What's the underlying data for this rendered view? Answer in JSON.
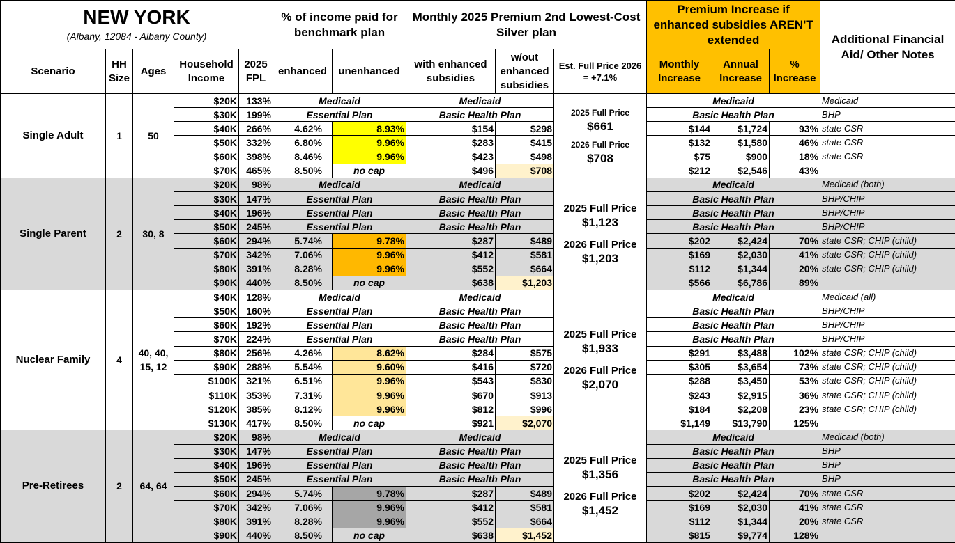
{
  "header": {
    "title": "NEW YORK",
    "subtitle": "(Albany, 12084 - Albany County)",
    "rate_group": "% of income paid for benchmark plan",
    "premium_group": "Monthly 2025 Premium 2nd Lowest-Cost Silver plan",
    "increase_group": "Premium Increase if enhanced subsidies AREN'T extended",
    "notes": "Additional Financial Aid/ Other Notes"
  },
  "columns": {
    "scenario": "Scenario",
    "hh_size": "HH Size",
    "ages": "Ages",
    "income": "Household Income",
    "fpl": "2025 FPL",
    "enhanced": "enhanced",
    "unenhanced": "unenhanced",
    "with": "with enhanced subsidies",
    "without": "w/out enhanced subsidies",
    "full_price": "Est. Full Price 2026 = +7.1%",
    "monthly": "Monthly Increase",
    "annual": "Annual Increase",
    "pct": "% Increase"
  },
  "no_cap_color": "#fff2cc",
  "groups": [
    {
      "scenario": "Single Adult",
      "hh_size": "1",
      "ages": "50",
      "background": "#ffffff",
      "highlight": "#ffff00",
      "label_2025": "2025 Full Price",
      "price_2025": "$661",
      "label_2026": "2026 Full Price",
      "price_2026": "$708",
      "rows": [
        {
          "income": "$20K",
          "fpl": "133%",
          "rate_plan": "Medicaid",
          "premium_plan": "Medicaid",
          "increase_plan": "Medicaid",
          "note": "Medicaid"
        },
        {
          "income": "$30K",
          "fpl": "199%",
          "rate_plan": "Essential Plan",
          "premium_plan": "Basic Health Plan",
          "increase_plan": "Basic Health Plan",
          "note": "BHP"
        },
        {
          "income": "$40K",
          "fpl": "266%",
          "enhanced": "4.62%",
          "unenhanced": "8.93%",
          "with": "$154",
          "without": "$298",
          "monthly": "$144",
          "annual": "$1,724",
          "pct": "93%",
          "note": "state CSR"
        },
        {
          "income": "$50K",
          "fpl": "332%",
          "enhanced": "6.80%",
          "unenhanced": "9.96%",
          "with": "$283",
          "without": "$415",
          "monthly": "$132",
          "annual": "$1,580",
          "pct": "46%",
          "note": "state CSR"
        },
        {
          "income": "$60K",
          "fpl": "398%",
          "enhanced": "8.46%",
          "unenhanced": "9.96%",
          "with": "$423",
          "without": "$498",
          "monthly": "$75",
          "annual": "$900",
          "pct": "18%",
          "note": "state CSR"
        },
        {
          "income": "$70K",
          "fpl": "465%",
          "enhanced": "8.50%",
          "unenhanced": "no cap",
          "with": "$496",
          "without": "$708",
          "monthly": "$212",
          "annual": "$2,546",
          "pct": "43%"
        }
      ]
    },
    {
      "scenario": "Single Parent",
      "hh_size": "2",
      "ages": "30, 8",
      "background": "#d9d9d9",
      "highlight": "#ffb800",
      "label_2025": "2025 Full Price",
      "price_2025": "$1,123",
      "label_2026": "2026 Full Price",
      "price_2026": "$1,203",
      "rows": [
        {
          "income": "$20K",
          "fpl": "98%",
          "rate_plan": "Medicaid",
          "premium_plan": "Medicaid",
          "increase_plan": "Medicaid",
          "note": "Medicaid (both)"
        },
        {
          "income": "$30K",
          "fpl": "147%",
          "rate_plan": "Essential Plan",
          "premium_plan": "Basic Health Plan",
          "increase_plan": "Basic Health Plan",
          "note": "BHP/CHIP"
        },
        {
          "income": "$40K",
          "fpl": "196%",
          "rate_plan": "Essential Plan",
          "premium_plan": "Basic Health Plan",
          "increase_plan": "Basic Health Plan",
          "note": "BHP/CHIP"
        },
        {
          "income": "$50K",
          "fpl": "245%",
          "rate_plan": "Essential Plan",
          "premium_plan": "Basic Health Plan",
          "increase_plan": "Basic Health Plan",
          "note": "BHP/CHIP"
        },
        {
          "income": "$60K",
          "fpl": "294%",
          "enhanced": "5.74%",
          "unenhanced": "9.78%",
          "with": "$287",
          "without": "$489",
          "monthly": "$202",
          "annual": "$2,424",
          "pct": "70%",
          "note": "state CSR; CHIP (child)"
        },
        {
          "income": "$70K",
          "fpl": "342%",
          "enhanced": "7.06%",
          "unenhanced": "9.96%",
          "with": "$412",
          "without": "$581",
          "monthly": "$169",
          "annual": "$2,030",
          "pct": "41%",
          "note": "state CSR; CHIP (child)"
        },
        {
          "income": "$80K",
          "fpl": "391%",
          "enhanced": "8.28%",
          "unenhanced": "9.96%",
          "with": "$552",
          "without": "$664",
          "monthly": "$112",
          "annual": "$1,344",
          "pct": "20%",
          "note": "state CSR; CHIP (child)"
        },
        {
          "income": "$90K",
          "fpl": "440%",
          "enhanced": "8.50%",
          "unenhanced": "no cap",
          "with": "$638",
          "without": "$1,203",
          "monthly": "$566",
          "annual": "$6,786",
          "pct": "89%"
        }
      ]
    },
    {
      "scenario": "Nuclear Family",
      "hh_size": "4",
      "ages": "40, 40, 15, 12",
      "background": "#ffffff",
      "highlight": "#ffe699",
      "label_2025": "2025 Full Price",
      "price_2025": "$1,933",
      "label_2026": "2026 Full Price",
      "price_2026": "$2,070",
      "rows": [
        {
          "income": "$40K",
          "fpl": "128%",
          "rate_plan": "Medicaid",
          "premium_plan": "Medicaid",
          "increase_plan": "Medicaid",
          "note": "Medicaid (all)"
        },
        {
          "income": "$50K",
          "fpl": "160%",
          "rate_plan": "Essential Plan",
          "premium_plan": "Basic Health Plan",
          "increase_plan": "Basic Health Plan",
          "note": "BHP/CHIP"
        },
        {
          "income": "$60K",
          "fpl": "192%",
          "rate_plan": "Essential Plan",
          "premium_plan": "Basic Health Plan",
          "increase_plan": "Basic Health Plan",
          "note": "BHP/CHIP"
        },
        {
          "income": "$70K",
          "fpl": "224%",
          "rate_plan": "Essential Plan",
          "premium_plan": "Basic Health Plan",
          "increase_plan": "Basic Health Plan",
          "note": "BHP/CHIP"
        },
        {
          "income": "$80K",
          "fpl": "256%",
          "enhanced": "4.26%",
          "unenhanced": "8.62%",
          "with": "$284",
          "without": "$575",
          "monthly": "$291",
          "annual": "$3,488",
          "pct": "102%",
          "note": "state CSR; CHIP (child)"
        },
        {
          "income": "$90K",
          "fpl": "288%",
          "enhanced": "5.54%",
          "unenhanced": "9.60%",
          "with": "$416",
          "without": "$720",
          "monthly": "$305",
          "annual": "$3,654",
          "pct": "73%",
          "note": "state CSR; CHIP (child)"
        },
        {
          "income": "$100K",
          "fpl": "321%",
          "enhanced": "6.51%",
          "unenhanced": "9.96%",
          "with": "$543",
          "without": "$830",
          "monthly": "$288",
          "annual": "$3,450",
          "pct": "53%",
          "note": "state CSR; CHIP (child)"
        },
        {
          "income": "$110K",
          "fpl": "353%",
          "enhanced": "7.31%",
          "unenhanced": "9.96%",
          "with": "$670",
          "without": "$913",
          "monthly": "$243",
          "annual": "$2,915",
          "pct": "36%",
          "note": "state CSR; CHIP (child)"
        },
        {
          "income": "$120K",
          "fpl": "385%",
          "enhanced": "8.12%",
          "unenhanced": "9.96%",
          "with": "$812",
          "without": "$996",
          "monthly": "$184",
          "annual": "$2,208",
          "pct": "23%",
          "note": "state CSR; CHIP (child)"
        },
        {
          "income": "$130K",
          "fpl": "417%",
          "enhanced": "8.50%",
          "unenhanced": "no cap",
          "with": "$921",
          "without": "$2,070",
          "monthly": "$1,149",
          "annual": "$13,790",
          "pct": "125%"
        }
      ]
    },
    {
      "scenario": "Pre-Retirees",
      "hh_size": "2",
      "ages": "64, 64",
      "background": "#d9d9d9",
      "highlight": "#a6a6a6",
      "label_2025": "2025 Full Price",
      "price_2025": "$1,356",
      "label_2026": "2026 Full Price",
      "price_2026": "$1,452",
      "rows": [
        {
          "income": "$20K",
          "fpl": "98%",
          "rate_plan": "Medicaid",
          "premium_plan": "Medicaid",
          "increase_plan": "Medicaid",
          "note": "Medicaid (both)"
        },
        {
          "income": "$30K",
          "fpl": "147%",
          "rate_plan": "Essential Plan",
          "premium_plan": "Basic Health Plan",
          "increase_plan": "Basic Health Plan",
          "note": "BHP"
        },
        {
          "income": "$40K",
          "fpl": "196%",
          "rate_plan": "Essential Plan",
          "premium_plan": "Basic Health Plan",
          "increase_plan": "Basic Health Plan",
          "note": "BHP"
        },
        {
          "income": "$50K",
          "fpl": "245%",
          "rate_plan": "Essential Plan",
          "premium_plan": "Basic Health Plan",
          "increase_plan": "Basic Health Plan",
          "note": "BHP"
        },
        {
          "income": "$60K",
          "fpl": "294%",
          "enhanced": "5.74%",
          "unenhanced": "9.78%",
          "with": "$287",
          "without": "$489",
          "monthly": "$202",
          "annual": "$2,424",
          "pct": "70%",
          "note": "state CSR"
        },
        {
          "income": "$70K",
          "fpl": "342%",
          "enhanced": "7.06%",
          "unenhanced": "9.96%",
          "with": "$412",
          "without": "$581",
          "monthly": "$169",
          "annual": "$2,030",
          "pct": "41%",
          "note": "state CSR"
        },
        {
          "income": "$80K",
          "fpl": "391%",
          "enhanced": "8.28%",
          "unenhanced": "9.96%",
          "with": "$552",
          "without": "$664",
          "monthly": "$112",
          "annual": "$1,344",
          "pct": "20%",
          "note": "state CSR"
        },
        {
          "income": "$90K",
          "fpl": "440%",
          "enhanced": "8.50%",
          "unenhanced": "no cap",
          "with": "$638",
          "without": "$1,452",
          "monthly": "$815",
          "annual": "$9,774",
          "pct": "128%"
        }
      ]
    }
  ]
}
